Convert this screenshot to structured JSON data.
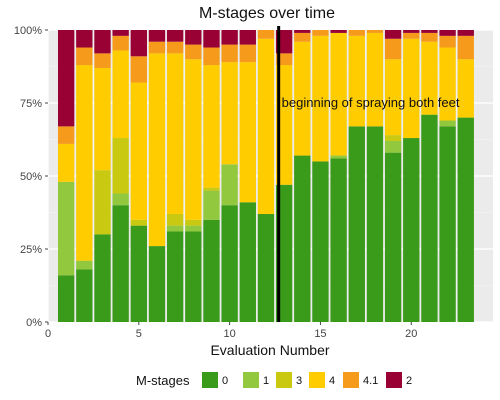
{
  "chart_data": {
    "type": "bar",
    "stacked": true,
    "percent": true,
    "title": "M-stages over time",
    "xlabel": "Evaluation Number",
    "ylabel": "",
    "xlim": [
      0,
      24.5
    ],
    "ylim": [
      0,
      1
    ],
    "x_ticks": [
      0,
      5,
      10,
      15,
      20
    ],
    "y_ticks": [
      0,
      0.25,
      0.5,
      0.75,
      1.0
    ],
    "y_tick_labels": [
      "0%",
      "25%",
      "50%",
      "75%",
      "100%"
    ],
    "grid": true,
    "legend": {
      "title": "M-stages",
      "position": "bottom"
    },
    "vline": {
      "x": 12.7,
      "label": "beginning of spraying both feet"
    },
    "x": [
      1,
      2,
      3,
      4,
      5,
      6,
      7,
      8,
      9,
      10,
      11,
      12,
      13,
      14,
      15,
      16,
      17,
      18,
      19,
      20,
      21,
      22,
      23
    ],
    "series": [
      {
        "name": "0",
        "color": "#3a9a1a",
        "values": [
          0.16,
          0.18,
          0.3,
          0.4,
          0.33,
          0.26,
          0.31,
          0.31,
          0.35,
          0.4,
          0.41,
          0.37,
          0.47,
          0.57,
          0.55,
          0.56,
          0.67,
          0.67,
          0.58,
          0.63,
          0.71,
          0.67,
          0.7
        ]
      },
      {
        "name": "1",
        "color": "#92c83e",
        "values": [
          0.32,
          0.03,
          0,
          0.04,
          0,
          0,
          0.02,
          0.02,
          0.1,
          0.14,
          0,
          0,
          0,
          0,
          0,
          0.01,
          0,
          0,
          0.04,
          0,
          0,
          0.02,
          0
        ]
      },
      {
        "name": "3",
        "color": "#c9c912",
        "values": [
          0,
          0,
          0.22,
          0.19,
          0.02,
          0,
          0.04,
          0.02,
          0.01,
          0,
          0,
          0,
          0,
          0,
          0,
          0,
          0,
          0,
          0.02,
          0,
          0,
          0,
          0
        ]
      },
      {
        "name": "4",
        "color": "#ffcc00",
        "values": [
          0.13,
          0.67,
          0.35,
          0.3,
          0.47,
          0.66,
          0.55,
          0.55,
          0.42,
          0.35,
          0.48,
          0.6,
          0.41,
          0.39,
          0.43,
          0.42,
          0.31,
          0.32,
          0.26,
          0.34,
          0.25,
          0.25,
          0.2
        ]
      },
      {
        "name": "4.1",
        "color": "#f59a1b",
        "values": [
          0.06,
          0.06,
          0.05,
          0.05,
          0.09,
          0.04,
          0.04,
          0.05,
          0.06,
          0.06,
          0.06,
          0.03,
          0.04,
          0.03,
          0.02,
          0,
          0.02,
          0.01,
          0.07,
          0.02,
          0.03,
          0.04,
          0.08
        ]
      },
      {
        "name": "2",
        "color": "#990033",
        "values": [
          0.33,
          0.06,
          0.08,
          0.02,
          0.09,
          0.04,
          0.04,
          0.05,
          0.06,
          0.05,
          0.05,
          0,
          0.08,
          0.01,
          0,
          0.01,
          0,
          0,
          0.03,
          0.01,
          0.01,
          0.02,
          0.02
        ]
      }
    ]
  }
}
